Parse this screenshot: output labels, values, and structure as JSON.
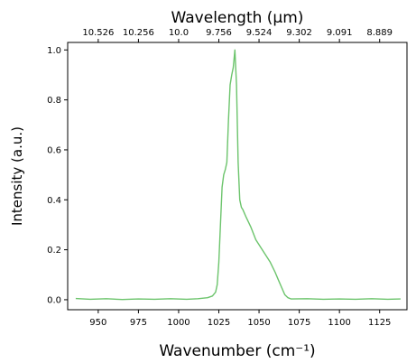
{
  "chart_data": {
    "type": "line",
    "title": "",
    "xlabel": "Wavenumber (cm⁻¹)",
    "ylabel": "Intensity (a.u.)",
    "top_xlabel": "Wavelength (µm)",
    "xlim": [
      931,
      1142
    ],
    "ylim": [
      -0.04,
      1.03
    ],
    "xticks": [
      950,
      975,
      1000,
      1025,
      1050,
      1075,
      1100,
      1125
    ],
    "yticks": [
      0.0,
      0.2,
      0.4,
      0.6,
      0.8,
      1.0
    ],
    "top_ticks": [
      {
        "label": "10.526",
        "wavenumber": 950
      },
      {
        "label": "10.256",
        "wavenumber": 975
      },
      {
        "label": "10.0",
        "wavenumber": 1000
      },
      {
        "label": "9.756",
        "wavenumber": 1025
      },
      {
        "label": "9.524",
        "wavenumber": 1050
      },
      {
        "label": "9.302",
        "wavenumber": 1075
      },
      {
        "label": "9.091",
        "wavenumber": 1100
      },
      {
        "label": "8.889",
        "wavenumber": 1125
      }
    ],
    "series": [
      {
        "color": "#6cc46c",
        "x": [
          936,
          945,
          955,
          965,
          975,
          985,
          995,
          1005,
          1012,
          1018,
          1021,
          1023,
          1024,
          1025,
          1026,
          1027,
          1028,
          1029,
          1030,
          1031,
          1032,
          1033,
          1034,
          1035,
          1036,
          1037,
          1038,
          1039,
          1040,
          1042,
          1045,
          1048,
          1051,
          1054,
          1057,
          1060,
          1062,
          1064,
          1066,
          1068,
          1070,
          1080,
          1090,
          1100,
          1110,
          1120,
          1130,
          1138
        ],
        "y": [
          0.005,
          0.002,
          0.004,
          0.001,
          0.003,
          0.002,
          0.004,
          0.002,
          0.004,
          0.008,
          0.015,
          0.03,
          0.06,
          0.15,
          0.3,
          0.45,
          0.5,
          0.52,
          0.55,
          0.72,
          0.86,
          0.9,
          0.93,
          1.0,
          0.86,
          0.55,
          0.4,
          0.37,
          0.36,
          0.33,
          0.29,
          0.24,
          0.21,
          0.18,
          0.15,
          0.11,
          0.08,
          0.05,
          0.02,
          0.008,
          0.003,
          0.004,
          0.002,
          0.003,
          0.002,
          0.004,
          0.002,
          0.003
        ]
      }
    ],
    "grid": false
  }
}
